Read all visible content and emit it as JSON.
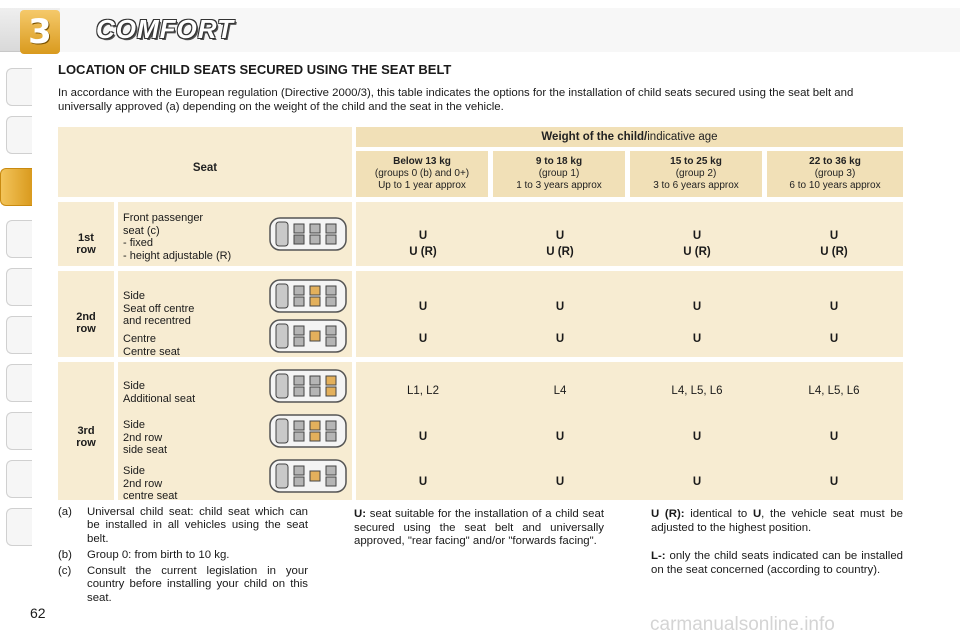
{
  "chapter": {
    "number": "3",
    "title": "COMFORT"
  },
  "section_title": "LOCATION OF CHILD SEATS SECURED USING THE SEAT BELT",
  "intro": "In accordance with the European regulation (Directive 2000/3), this table indicates the options for the installation of child seats secured using the seat belt and universally approved (a) depending on the weight of the child and the seat in the vehicle.",
  "table": {
    "seat_header": "Seat",
    "weight_header_bold": "Weight of the child/",
    "weight_header_rest": "indicative age",
    "groups": [
      {
        "weight": "Below 13 kg",
        "line2": "(groups 0 (b) and 0+)",
        "line3": "Up to 1 year approx"
      },
      {
        "weight": "9 to 18 kg",
        "line2": "(group 1)",
        "line3": "1 to 3 years approx"
      },
      {
        "weight": "15 to 25 kg",
        "line2": "(group 2)",
        "line3": "3 to 6 years approx"
      },
      {
        "weight": "22 to 36 kg",
        "line2": "(group 3)",
        "line3": "6 to 10 years approx"
      }
    ],
    "rows": [
      {
        "label_1": "1st",
        "label_2": "row",
        "seats": [
          {
            "lines": [
              "Front passenger",
              "seat (c)",
              "- fixed",
              "- height adjustable (R)"
            ],
            "values": [
              "U",
              "U",
              "U",
              "U"
            ],
            "values2": [
              "U (R)",
              "U (R)",
              "U (R)",
              "U (R)"
            ]
          }
        ]
      },
      {
        "label_1": "2nd",
        "label_2": "row",
        "seats": [
          {
            "lines": [
              "Side",
              "Seat off centre",
              "and recentred"
            ],
            "values": [
              "U",
              "U",
              "U",
              "U"
            ]
          },
          {
            "lines": [
              "Centre",
              "Centre seat"
            ],
            "values": [
              "U",
              "U",
              "U",
              "U"
            ]
          }
        ]
      },
      {
        "label_1": "3rd",
        "label_2": "row",
        "seats": [
          {
            "lines": [
              "Side",
              "Additional seat"
            ],
            "values": [
              "L1, L2",
              "L4",
              "L4, L5, L6",
              "L4, L5, L6"
            ]
          },
          {
            "lines": [
              "Side",
              "2nd row",
              "side seat"
            ],
            "values": [
              "U",
              "U",
              "U",
              "U"
            ]
          },
          {
            "lines": [
              "Side",
              "2nd row",
              "centre seat"
            ],
            "values": [
              "U",
              "U",
              "U",
              "U"
            ]
          }
        ]
      }
    ]
  },
  "footnotes": {
    "a_key": "(a)",
    "a_text": "Universal child seat: child seat which can be installed in all vehicles using the seat belt.",
    "b_key": "(b)",
    "b_text": "Group 0: from birth to 10 kg.",
    "c_key": "(c)",
    "c_text": "Consult the current legislation in your country before installing your child on this seat.",
    "u_key": "U:",
    "u_text": "seat suitable for the installation of a child seat secured using the seat belt and universally approved, \"rear facing\" and/or \"forwards facing\".",
    "ur_key": "U (R):",
    "ur_text_1": "identical to",
    "ur_u": "U",
    "ur_text_2": ", the vehicle seat must be adjusted to the highest position.",
    "l_key": "L-:",
    "l_text": "only the child seats indicated can be installed on the seat concerned (according to country)."
  },
  "page_number": "62",
  "watermark": "carmanualsonline.info"
}
